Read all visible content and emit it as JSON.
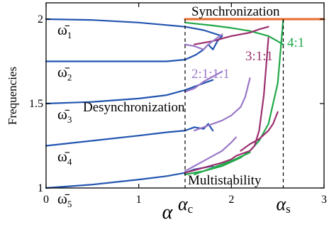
{
  "chart_data": {
    "type": "line",
    "title": "",
    "xlabel": "α",
    "ylabel": "Frequencies",
    "xlim": [
      0,
      3
    ],
    "ylim": [
      1,
      2
    ],
    "x_ticks": [
      "0",
      "1",
      "2",
      "3"
    ],
    "y_ticks": [
      "1",
      "1.5",
      "2"
    ],
    "colors": {
      "frequency": "#2255b0",
      "ratio_2_1_1_1": "#9a78c8",
      "ratio_3_1_1": "#9b2f6e",
      "ratio_4_1": "#22a84a",
      "synchronized": "#e8743a",
      "critical_line": "#000000"
    },
    "frequency_labels": [
      {
        "name": "ω̄",
        "sub": "1",
        "value": 2.0
      },
      {
        "name": "ω̄",
        "sub": "2",
        "value": 1.75
      },
      {
        "name": "ω̄",
        "sub": "3",
        "value": 1.5
      },
      {
        "name": "ω̄",
        "sub": "4",
        "value": 1.25
      },
      {
        "name": "ω̄",
        "sub": "5",
        "value": 1.0
      }
    ],
    "annotations": {
      "synchronization": "Synchronization",
      "desynchronization": "Desynchronization",
      "multistability": "Multistability",
      "ratio_4_1": "4:1",
      "ratio_3_1_1": "3:1:1",
      "ratio_2_1_1_1": "2:1:1:1"
    },
    "critical_points": [
      {
        "label": "α",
        "sub": "c",
        "x": 1.5
      },
      {
        "label": "α",
        "sub": "s",
        "x": 2.56
      }
    ],
    "series": [
      {
        "name": "ω̄1",
        "color_key": "frequency",
        "x": [
          0,
          0.5,
          1.0,
          1.3,
          1.5,
          1.7,
          1.9
        ],
        "y": [
          2.0,
          1.995,
          1.98,
          1.965,
          1.955,
          1.935,
          1.9
        ]
      },
      {
        "name": "ω̄2",
        "color_key": "frequency",
        "x": [
          0,
          0.5,
          1.0,
          1.3,
          1.5,
          1.62,
          1.7,
          1.75,
          1.8,
          1.85,
          1.9
        ],
        "y": [
          1.75,
          1.75,
          1.75,
          1.75,
          1.76,
          1.79,
          1.82,
          1.85,
          1.82,
          1.87,
          1.9
        ]
      },
      {
        "name": "ω̄3",
        "color_key": "frequency",
        "x": [
          0,
          0.5,
          1.0,
          1.3,
          1.5,
          1.6,
          1.7,
          1.8
        ],
        "y": [
          1.5,
          1.51,
          1.53,
          1.55,
          1.58,
          1.6,
          1.62,
          1.64
        ]
      },
      {
        "name": "ω̄4",
        "color_key": "frequency",
        "x": [
          0,
          0.5,
          1.0,
          1.3,
          1.5,
          1.6,
          1.7,
          1.75,
          1.8
        ],
        "y": [
          1.25,
          1.28,
          1.31,
          1.33,
          1.34,
          1.36,
          1.35,
          1.38,
          1.34
        ]
      },
      {
        "name": "ω̄5",
        "color_key": "frequency",
        "x": [
          0,
          0.5,
          1.0,
          1.3,
          1.5,
          1.6,
          1.7,
          1.8
        ],
        "y": [
          1.0,
          1.02,
          1.05,
          1.07,
          1.09,
          1.11,
          1.12,
          1.13
        ]
      },
      {
        "name": "4:1 upper",
        "color_key": "ratio_4_1",
        "x": [
          1.5,
          1.8,
          2.0,
          2.2,
          2.4,
          2.56
        ],
        "y": [
          1.98,
          1.962,
          1.948,
          1.93,
          1.9,
          1.85
        ]
      },
      {
        "name": "4:1 lower",
        "color_key": "ratio_4_1",
        "x": [
          1.5,
          1.7,
          1.9,
          2.1,
          2.2,
          2.3,
          2.4,
          2.5,
          2.56
        ],
        "y": [
          1.08,
          1.1,
          1.13,
          1.18,
          1.22,
          1.28,
          1.38,
          1.62,
          2.0
        ]
      },
      {
        "name": "4:1 mid",
        "color_key": "ratio_4_1",
        "x": [
          1.6,
          1.8,
          2.0,
          2.2
        ],
        "y": [
          1.08,
          1.12,
          1.16,
          1.21
        ]
      },
      {
        "name": "3:1:1 a",
        "color_key": "ratio_3_1_1",
        "x": [
          1.6,
          1.8,
          2.0,
          2.1,
          2.2,
          2.3,
          2.4
        ],
        "y": [
          1.85,
          1.87,
          1.9,
          1.91,
          1.92,
          1.94,
          1.955
        ]
      },
      {
        "name": "3:1:1 b",
        "color_key": "ratio_3_1_1",
        "x": [
          1.5,
          1.7,
          1.9,
          2.0,
          2.05,
          2.1,
          2.15,
          2.2,
          2.25,
          2.3,
          2.35,
          2.4
        ],
        "y": [
          1.09,
          1.12,
          1.15,
          1.17,
          1.19,
          1.2,
          1.21,
          1.22,
          1.25,
          1.34,
          1.55,
          1.89
        ]
      },
      {
        "name": "3:1:1 c",
        "color_key": "ratio_3_1_1",
        "x": [
          2.1,
          2.2,
          2.3,
          2.4,
          2.45,
          2.5
        ],
        "y": [
          1.22,
          1.26,
          1.29,
          1.34,
          1.38,
          1.45
        ]
      },
      {
        "name": "2:1:1:1 a",
        "color_key": "ratio_2_1_1_1",
        "x": [
          1.5,
          1.6,
          1.7,
          1.8,
          1.9
        ],
        "y": [
          1.57,
          1.59,
          1.63,
          1.66,
          1.69
        ]
      },
      {
        "name": "2:1:1:1 b",
        "color_key": "ratio_2_1_1_1",
        "x": [
          1.5,
          1.6,
          1.7,
          1.75,
          1.8,
          1.85,
          1.9
        ],
        "y": [
          1.85,
          1.84,
          1.82,
          1.85,
          1.87,
          1.89,
          1.91
        ]
      },
      {
        "name": "2:1:1:1 c",
        "color_key": "ratio_2_1_1_1",
        "x": [
          1.5,
          1.6,
          1.7,
          1.8,
          1.9,
          2.0,
          2.05
        ],
        "y": [
          1.1,
          1.13,
          1.16,
          1.19,
          1.22,
          1.27,
          1.3
        ]
      },
      {
        "name": "2:1:1:1 d",
        "color_key": "ratio_2_1_1_1",
        "x": [
          1.6,
          1.75,
          1.9,
          2.0,
          2.1,
          2.15,
          2.2
        ],
        "y": [
          1.34,
          1.37,
          1.4,
          1.43,
          1.48,
          1.54,
          1.65
        ]
      },
      {
        "name": "synchronized",
        "color_key": "synchronized",
        "x": [
          1.5,
          2.0,
          2.5,
          3.0
        ],
        "y": [
          2.0,
          2.0,
          2.0,
          2.0
        ]
      }
    ]
  }
}
